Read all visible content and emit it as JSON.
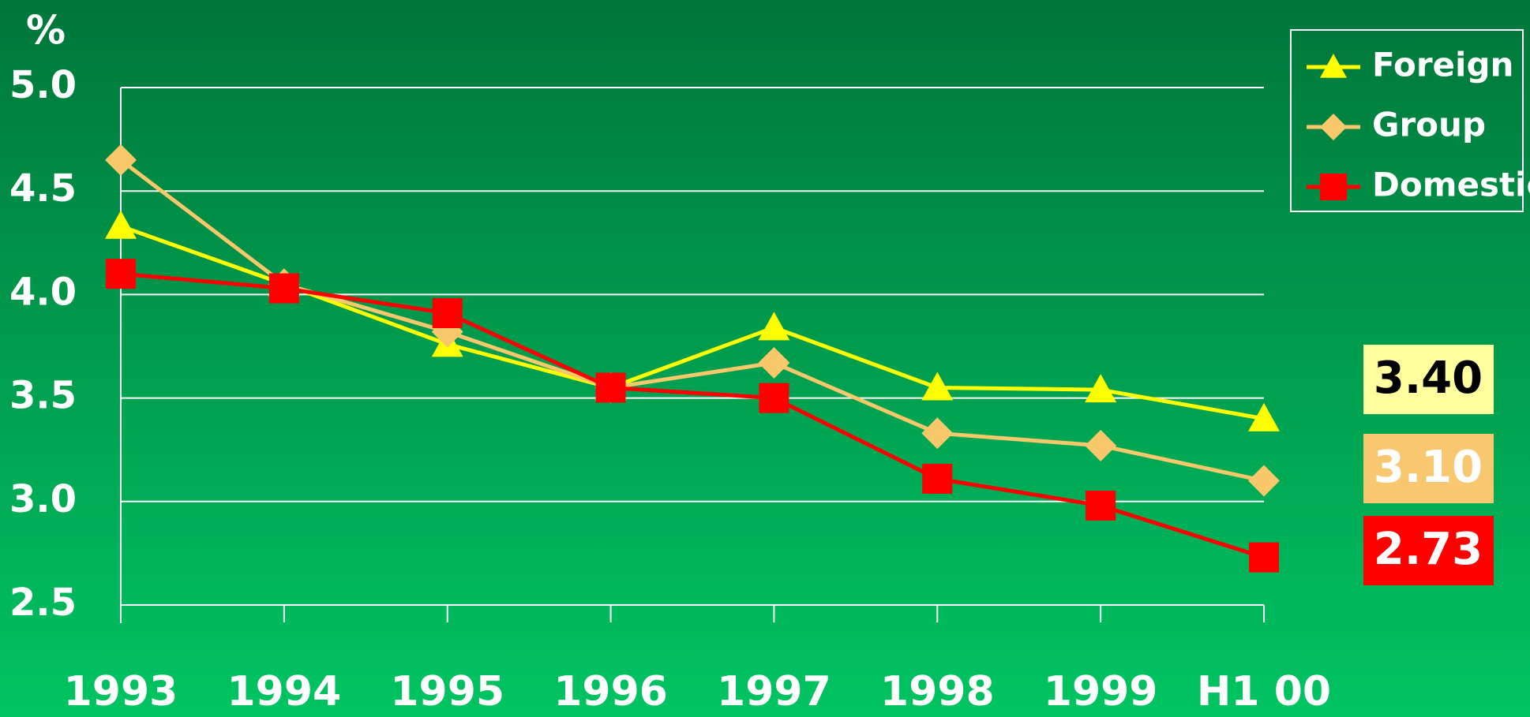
{
  "chart_data": {
    "type": "line",
    "y_axis_label": "%",
    "categories": [
      "1993",
      "1994",
      "1995",
      "1996",
      "1997",
      "1998",
      "1999",
      "H1 00"
    ],
    "ylim": [
      2.5,
      5
    ],
    "yticks": [
      2.5,
      {
        "value": 3,
        "label": "3.0"
      },
      3.5,
      {
        "value": 4,
        "label": "4.0"
      },
      4.5,
      {
        "value": 5,
        "label": "5.0"
      }
    ],
    "grid": true,
    "legend": "top-right",
    "series": [
      {
        "name": "Foreign",
        "color": "#ffff00",
        "marker": "triangle",
        "values": [
          4.33,
          4.05,
          3.76,
          3.55,
          3.84,
          3.55,
          3.54,
          3.4
        ],
        "value_labels": [
          null,
          null,
          null,
          null,
          null,
          null,
          null,
          "3.40"
        ]
      },
      {
        "name": "Group",
        "color": "#f8c86a",
        "marker": "diamond",
        "values": [
          4.65,
          4.05,
          3.82,
          3.55,
          3.67,
          3.33,
          3.27,
          3.1
        ],
        "value_labels": [
          null,
          null,
          null,
          null,
          null,
          null,
          null,
          "3.10"
        ]
      },
      {
        "name": "Domestic",
        "color": "#ff0000",
        "marker": "square",
        "values": [
          4.1,
          4.03,
          3.91,
          3.55,
          3.5,
          3.11,
          2.98,
          2.73
        ],
        "value_labels": [
          null,
          null,
          null,
          null,
          null,
          null,
          null,
          "2.73"
        ]
      }
    ]
  }
}
